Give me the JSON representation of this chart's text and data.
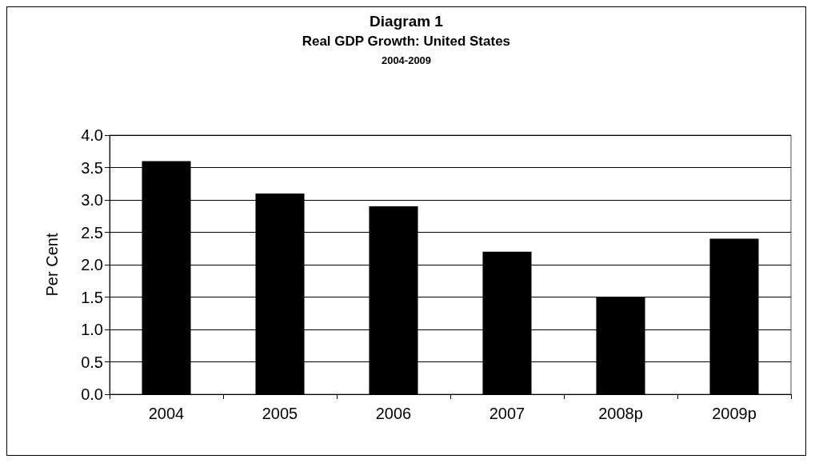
{
  "chart_data": {
    "type": "bar",
    "title": "Diagram 1",
    "subtitle": "Real GDP Growth: United States",
    "annotations": [
      "2004-2009"
    ],
    "ylabel": "Per Cent",
    "categories": [
      "2004",
      "2005",
      "2006",
      "2007",
      "2008p",
      "2009p"
    ],
    "values": [
      3.6,
      3.1,
      2.9,
      2.2,
      1.5,
      2.4
    ],
    "color": "#000000",
    "ylim": [
      0,
      4
    ],
    "yticks": [
      {
        "value": 0,
        "label": "0.0"
      },
      {
        "value": 0.5,
        "label": "0.5"
      },
      {
        "value": 1,
        "label": "1.0"
      },
      {
        "value": 1.5,
        "label": "1.5"
      },
      {
        "value": 2,
        "label": "2.0"
      },
      {
        "value": 2.5,
        "label": "2.5"
      },
      {
        "value": 3,
        "label": "3.0"
      },
      {
        "value": 3.5,
        "label": "3.5"
      },
      {
        "value": 4,
        "label": "4.0"
      }
    ],
    "grid": "y"
  }
}
